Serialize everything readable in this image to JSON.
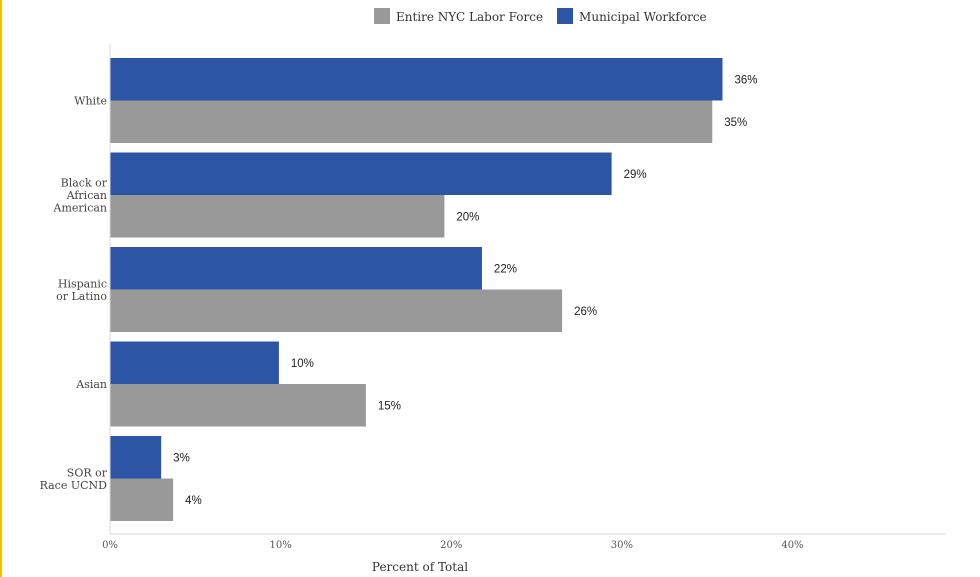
{
  "chart_data": {
    "type": "bar",
    "orientation": "horizontal",
    "categories": [
      [
        "White"
      ],
      [
        "Black or",
        "African",
        "American"
      ],
      [
        "Hispanic",
        "or Latino"
      ],
      [
        "Asian"
      ],
      [
        "SOR or",
        "Race UCND"
      ]
    ],
    "series": [
      {
        "name": "Municipal Workforce",
        "color": "#2d55a5",
        "values": [
          35.9,
          29.4,
          21.8,
          9.9,
          3.0
        ],
        "labels": [
          "36%",
          "29%",
          "22%",
          "10%",
          "3%"
        ]
      },
      {
        "name": "Entire NYC Labor Force",
        "color": "#999999",
        "values": [
          35.3,
          19.6,
          26.5,
          15.0,
          3.7
        ],
        "labels": [
          "35%",
          "20%",
          "26%",
          "15%",
          "4%"
        ]
      }
    ],
    "legend_order": [
      1,
      0
    ],
    "legend_position": "top",
    "xlabel": "Percent of Total",
    "xlim": [
      0,
      49
    ],
    "xticks": [
      0,
      10,
      20,
      30,
      40
    ],
    "xtick_labels": [
      "0%",
      "10%",
      "20%",
      "30%",
      "40%"
    ],
    "grid": false
  }
}
